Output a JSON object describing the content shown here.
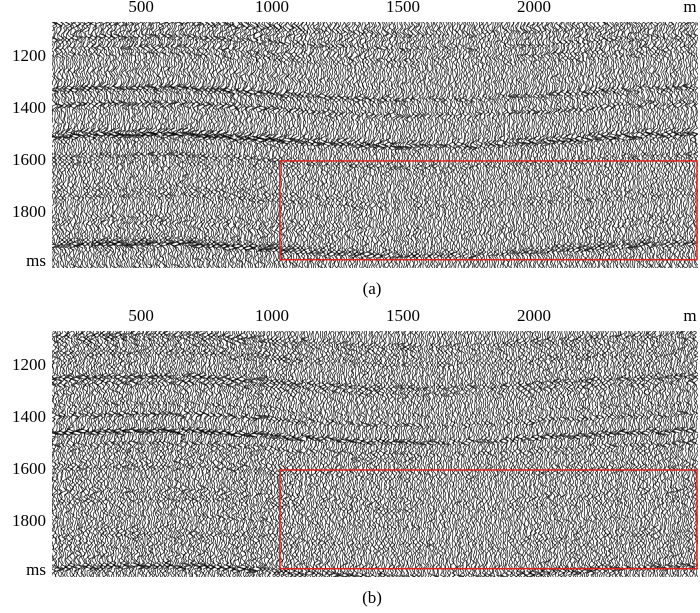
{
  "panels": [
    {
      "caption": "(a)",
      "x_unit": "m",
      "y_unit": "ms",
      "xticks": [
        500,
        1000,
        1500,
        2000
      ],
      "yticks": [
        1200,
        1400,
        1600,
        1800
      ],
      "xlim": [
        160,
        2626
      ],
      "ylim": [
        1065,
        2012
      ],
      "highlight_box": {
        "x": [
          1030,
          2626
        ],
        "y": [
          1600,
          1980
        ]
      }
    },
    {
      "caption": "(b)",
      "x_unit": "m",
      "y_unit": "ms",
      "xticks": [
        500,
        1000,
        1500,
        2000
      ],
      "yticks": [
        1200,
        1400,
        1600,
        1800
      ],
      "xlim": [
        160,
        2626
      ],
      "ylim": [
        1065,
        2012
      ],
      "highlight_box": {
        "x": [
          1030,
          2626
        ],
        "y": [
          1600,
          1980
        ]
      }
    }
  ]
}
